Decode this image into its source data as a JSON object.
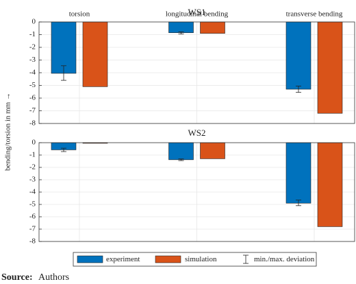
{
  "chart_data": [
    {
      "type": "bar",
      "title": "WS1",
      "categories": [
        "torsion",
        "longitudinal bending",
        "transverse bending"
      ],
      "series": [
        {
          "name": "experiment",
          "color": "#0072bd",
          "values": [
            -4.05,
            -0.85,
            -5.3
          ],
          "error_min": [
            -4.6,
            -0.95,
            -5.55
          ],
          "error_max": [
            -3.45,
            -0.78,
            -5.05
          ]
        },
        {
          "name": "simulation",
          "color": "#d95319",
          "values": [
            -5.1,
            -0.9,
            -7.2
          ]
        }
      ],
      "ylim": [
        -8,
        0
      ],
      "yticks": [
        0,
        -1,
        -2,
        -3,
        -4,
        -5,
        -6,
        -7,
        -8
      ],
      "grid": true
    },
    {
      "type": "bar",
      "title": "WS2",
      "series": [
        {
          "color": "#0072bd",
          "values": [
            -0.58,
            -1.38,
            -4.9
          ],
          "error_min": [
            -0.72,
            -1.45,
            -5.1
          ],
          "error_max": [
            -0.45,
            -1.32,
            -4.65
          ]
        },
        {
          "color": "#d95319",
          "values": [
            -0.05,
            -1.3,
            -6.8
          ]
        }
      ],
      "ylim": [
        -8,
        0
      ],
      "yticks": [
        0,
        -1,
        -2,
        -3,
        -4,
        -5,
        -6,
        -7,
        -8
      ],
      "grid": true
    }
  ],
  "ylabel": "bending/torsion in mm →",
  "error_label": "min./max. deviation",
  "source_label": "Source:",
  "source": "Authors"
}
